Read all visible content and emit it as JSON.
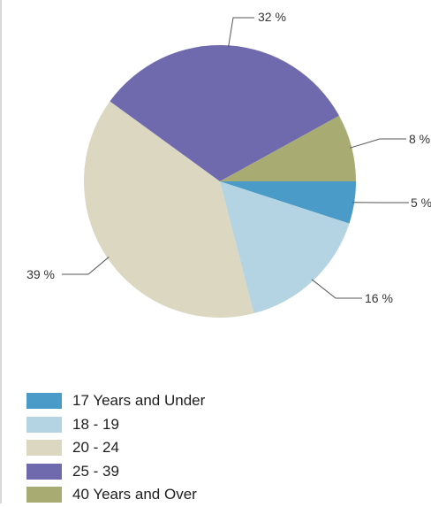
{
  "chart_data": {
    "type": "pie",
    "title": "",
    "categories": [
      "17 Years and Under",
      "18 - 19",
      "20 - 24",
      "25 - 39",
      "40 Years and Over"
    ],
    "values": [
      5,
      16,
      39,
      32,
      8
    ],
    "labels": [
      "5 %",
      "16 %",
      "39 %",
      "32 %",
      "8 %"
    ],
    "colors": [
      "#4a9bc7",
      "#b4d3e3",
      "#dbd7c0",
      "#6f6aad",
      "#a8ac73"
    ],
    "legend": "bottom-left"
  }
}
